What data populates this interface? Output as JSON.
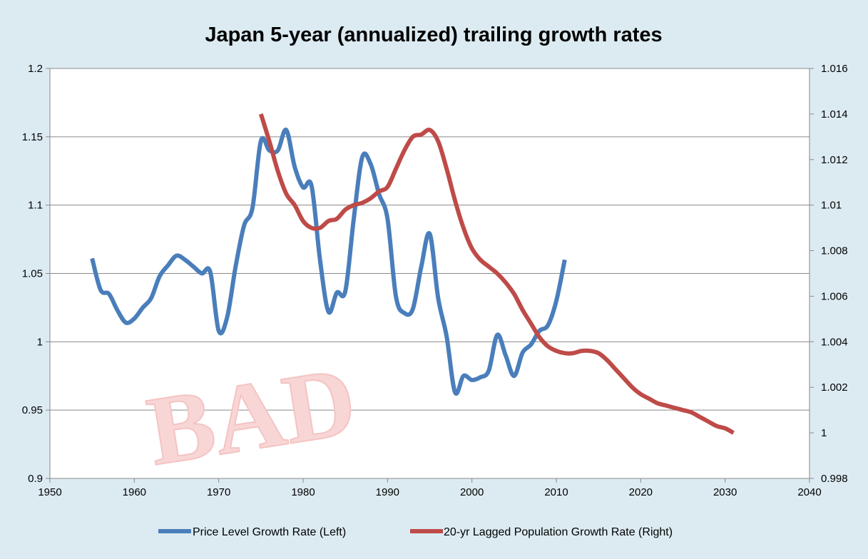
{
  "chart_data": {
    "type": "line",
    "title": "Japan 5-year (annualized) trailing growth rates",
    "xlabel": "",
    "ylabel": "",
    "xlim": [
      1950,
      2040
    ],
    "ylim_left": [
      0.9,
      1.2
    ],
    "ylim_right": [
      0.998,
      1.016
    ],
    "x_ticks": [
      "1950",
      "1960",
      "1970",
      "1980",
      "1990",
      "2000",
      "2010",
      "2020",
      "2030",
      "2040"
    ],
    "y_left_ticks": [
      "0.9",
      "0.95",
      "1",
      "1.05",
      "1.1",
      "1.15",
      "1.2"
    ],
    "y_right_ticks": [
      "0.998",
      "1",
      "1.002",
      "1.004",
      "1.006",
      "1.008",
      "1.01",
      "1.012",
      "1.014",
      "1.016"
    ],
    "grid": true,
    "legend_position": "bottom",
    "series": [
      {
        "name": "Price Level Growth Rate (Left)",
        "axis": "left",
        "color": "#4a7ebb",
        "points": [
          [
            1955,
            1.061
          ],
          [
            1956,
            1.038
          ],
          [
            1957,
            1.035
          ],
          [
            1958,
            1.023
          ],
          [
            1959,
            1.014
          ],
          [
            1960,
            1.017
          ],
          [
            1961,
            1.025
          ],
          [
            1962,
            1.032
          ],
          [
            1963,
            1.048
          ],
          [
            1964,
            1.056
          ],
          [
            1965,
            1.063
          ],
          [
            1966,
            1.06
          ],
          [
            1967,
            1.055
          ],
          [
            1968,
            1.05
          ],
          [
            1969,
            1.051
          ],
          [
            1970,
            1.008
          ],
          [
            1971,
            1.018
          ],
          [
            1972,
            1.055
          ],
          [
            1973,
            1.085
          ],
          [
            1974,
            1.098
          ],
          [
            1975,
            1.147
          ],
          [
            1976,
            1.14
          ],
          [
            1977,
            1.14
          ],
          [
            1978,
            1.155
          ],
          [
            1979,
            1.128
          ],
          [
            1980,
            1.113
          ],
          [
            1981,
            1.114
          ],
          [
            1982,
            1.06
          ],
          [
            1983,
            1.022
          ],
          [
            1984,
            1.036
          ],
          [
            1985,
            1.037
          ],
          [
            1986,
            1.09
          ],
          [
            1987,
            1.135
          ],
          [
            1988,
            1.13
          ],
          [
            1989,
            1.108
          ],
          [
            1990,
            1.09
          ],
          [
            1991,
            1.033
          ],
          [
            1992,
            1.021
          ],
          [
            1993,
            1.024
          ],
          [
            1994,
            1.055
          ],
          [
            1995,
            1.079
          ],
          [
            1996,
            1.032
          ],
          [
            1997,
            1.004
          ],
          [
            1998,
            0.963
          ],
          [
            1999,
            0.975
          ],
          [
            2000,
            0.972
          ],
          [
            2001,
            0.974
          ],
          [
            2002,
            0.979
          ],
          [
            2003,
            1.005
          ],
          [
            2004,
            0.99
          ],
          [
            2005,
            0.975
          ],
          [
            2006,
            0.992
          ],
          [
            2007,
            0.998
          ],
          [
            2008,
            1.008
          ],
          [
            2009,
            1.012
          ],
          [
            2010,
            1.03
          ],
          [
            2011,
            1.06
          ]
        ]
      },
      {
        "name": "20-yr Lagged Population Growth Rate (Right)",
        "axis": "right",
        "color": "#be4b48",
        "points": [
          [
            1975,
            1.014
          ],
          [
            1976,
            1.0128
          ],
          [
            1977,
            1.0115
          ],
          [
            1978,
            1.0105
          ],
          [
            1979,
            1.01
          ],
          [
            1980,
            1.0093
          ],
          [
            1981,
            1.009
          ],
          [
            1982,
            1.009
          ],
          [
            1983,
            1.0093
          ],
          [
            1984,
            1.0094
          ],
          [
            1985,
            1.0098
          ],
          [
            1986,
            1.01
          ],
          [
            1987,
            1.0101
          ],
          [
            1988,
            1.0103
          ],
          [
            1989,
            1.0106
          ],
          [
            1990,
            1.0108
          ],
          [
            1991,
            1.0116
          ],
          [
            1992,
            1.0124
          ],
          [
            1993,
            1.013
          ],
          [
            1994,
            1.0131
          ],
          [
            1995,
            1.0133
          ],
          [
            1996,
            1.0128
          ],
          [
            1997,
            1.0116
          ],
          [
            1998,
            1.0102
          ],
          [
            1999,
            1.009
          ],
          [
            2000,
            1.0081
          ],
          [
            2001,
            1.0076
          ],
          [
            2002,
            1.0073
          ],
          [
            2003,
            1.007
          ],
          [
            2004,
            1.0066
          ],
          [
            2005,
            1.0061
          ],
          [
            2006,
            1.0054
          ],
          [
            2007,
            1.0048
          ],
          [
            2008,
            1.0042
          ],
          [
            2009,
            1.0038
          ],
          [
            2010,
            1.0036
          ],
          [
            2011,
            1.0035
          ],
          [
            2012,
            1.0035
          ],
          [
            2013,
            1.0036
          ],
          [
            2014,
            1.0036
          ],
          [
            2015,
            1.0035
          ],
          [
            2016,
            1.0032
          ],
          [
            2017,
            1.0028
          ],
          [
            2018,
            1.0024
          ],
          [
            2019,
            1.002
          ],
          [
            2020,
            1.0017
          ],
          [
            2021,
            1.0015
          ],
          [
            2022,
            1.0013
          ],
          [
            2023,
            1.0012
          ],
          [
            2024,
            1.0011
          ],
          [
            2025,
            1.001
          ],
          [
            2026,
            1.0009
          ],
          [
            2027,
            1.0007
          ],
          [
            2028,
            1.0005
          ],
          [
            2029,
            1.0003
          ],
          [
            2030,
            1.0002
          ],
          [
            2031,
            1.0
          ]
        ]
      }
    ],
    "watermark": "BAD"
  }
}
